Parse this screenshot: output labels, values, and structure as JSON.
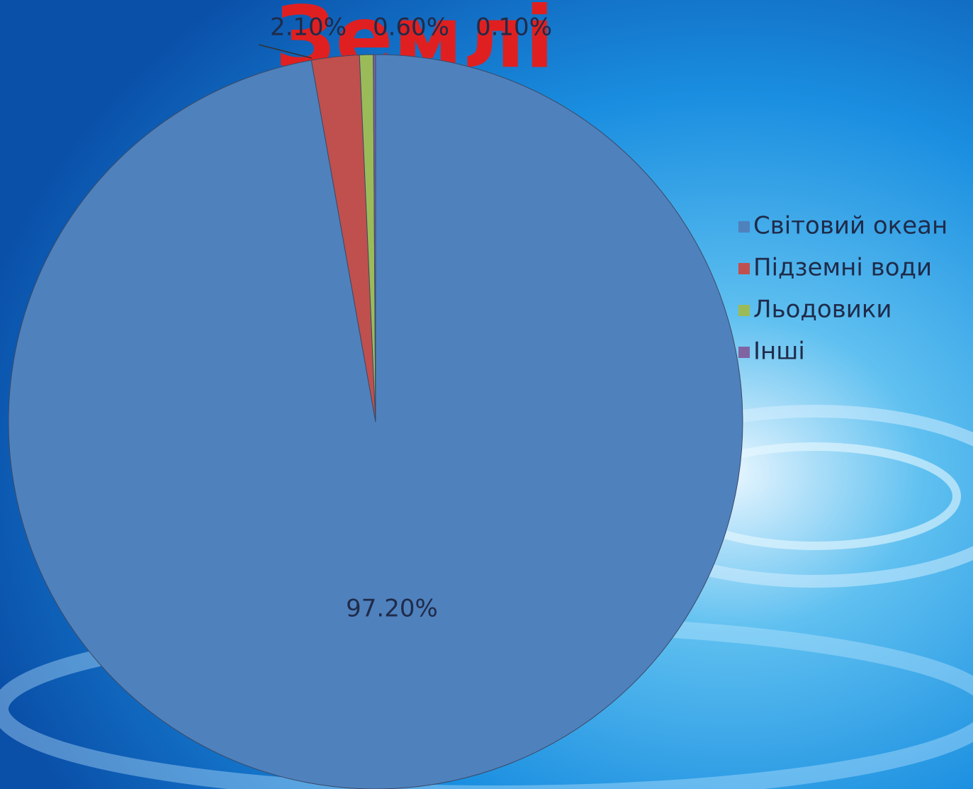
{
  "chart_data": {
    "type": "pie",
    "title": "Землі",
    "categories": [
      "Світовий океан",
      "Підземні води",
      "Льодовики",
      "Інші"
    ],
    "values": [
      97.2,
      2.1,
      0.6,
      0.1
    ],
    "value_labels": [
      "97.20%",
      "2.10%",
      "0.60%",
      "0.10%"
    ],
    "colors": [
      "#4f81bd",
      "#c0504d",
      "#9bbb59",
      "#8064a2"
    ],
    "legend": "right"
  }
}
